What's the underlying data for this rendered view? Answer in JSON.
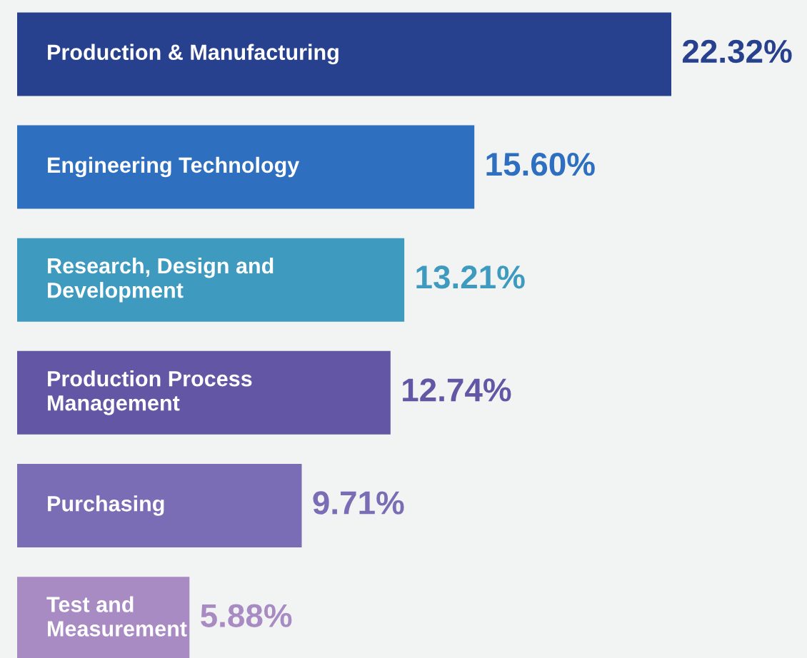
{
  "chart_data": {
    "type": "bar",
    "orientation": "horizontal",
    "categories": [
      "Production & Manufacturing",
      "Engineering Technology",
      "Research, Design and\nDevelopment",
      "Production Process\nManagement",
      "Purchasing",
      "Test and\nMeasurement"
    ],
    "values": [
      22.32,
      15.6,
      13.21,
      12.74,
      9.71,
      5.88
    ],
    "value_labels": [
      "22.32%",
      "15.60%",
      "13.21%",
      "12.74%",
      "9.71%",
      "5.88%"
    ],
    "colors": [
      "#27418f",
      "#2f6fc0",
      "#3e9bbf",
      "#6357a5",
      "#7a6db5",
      "#a98bc4"
    ],
    "legend": false
  }
}
